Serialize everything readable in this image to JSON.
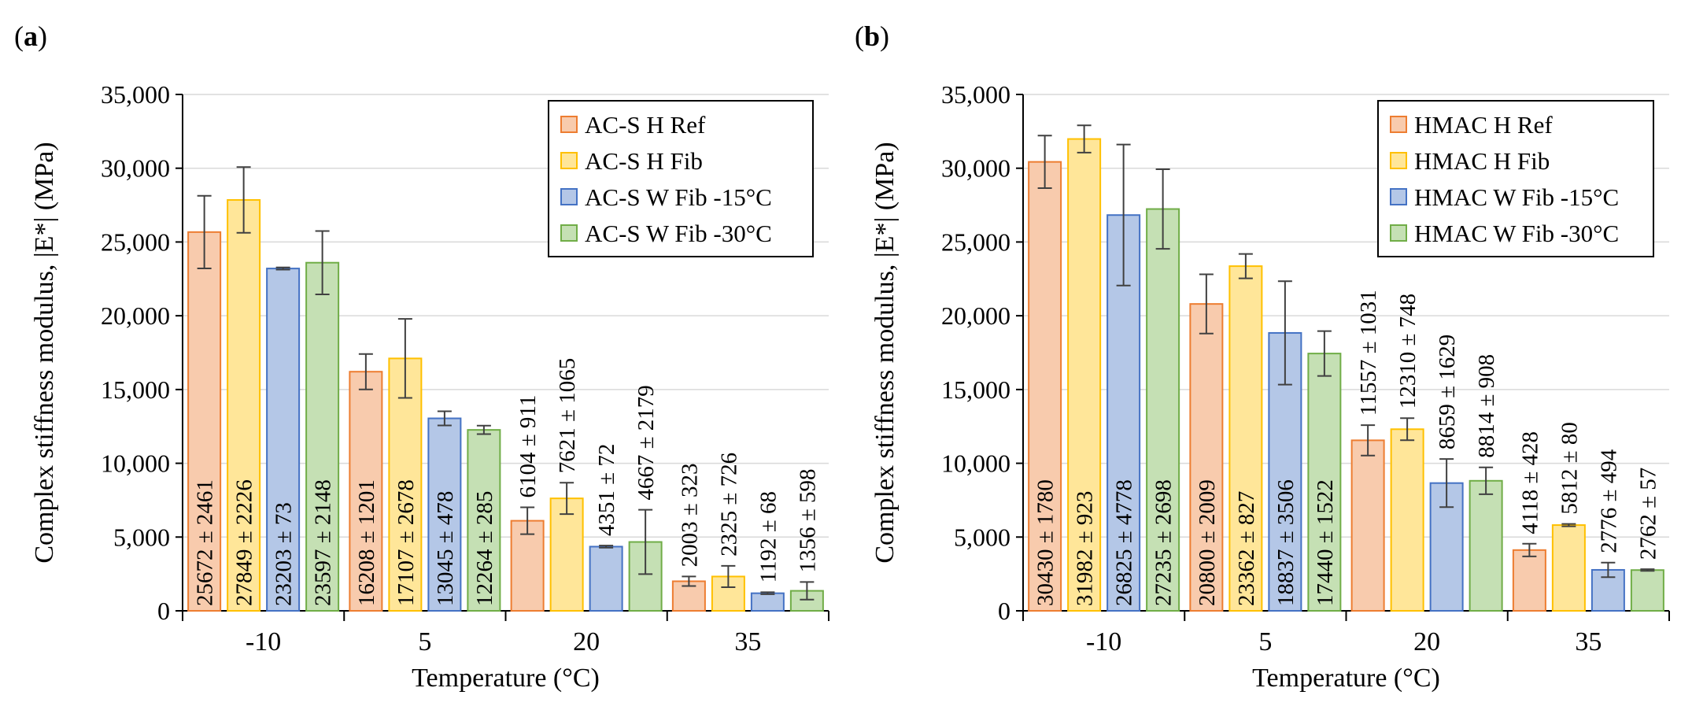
{
  "colors": {
    "h_ref_fill": "#F8CBAD",
    "h_ref_stroke": "#ED7D31",
    "h_fib_fill": "#FFE699",
    "h_fib_stroke": "#FFC000",
    "w15_fill": "#B4C7E7",
    "w15_stroke": "#4472C4",
    "w30_fill": "#C5E0B4",
    "w30_stroke": "#70AD47",
    "grid": "#D9D9D9",
    "error_bar": "#404040"
  },
  "chart_data": [
    {
      "type": "bar",
      "panel_label_open": "(",
      "panel_label_letter": "a",
      "panel_label_close": ")",
      "xlabel": "Temperature (°C)",
      "ylabel": "Complex stiffness modulus, |E*| (MPa)",
      "ylim": [
        0,
        35000
      ],
      "yticks": [
        0,
        5000,
        10000,
        15000,
        20000,
        25000,
        30000,
        35000
      ],
      "ytick_labels": [
        "0",
        "5,000",
        "10,000",
        "15,000",
        "20,000",
        "25,000",
        "30,000",
        "35,000"
      ],
      "grid": true,
      "legend_position": "top-right",
      "categories": [
        "-10",
        "5",
        "20",
        "35"
      ],
      "series": [
        {
          "name": "AC-S H Ref",
          "color_key": "h_ref",
          "values": [
            25672,
            16208,
            6104,
            2003
          ],
          "errors": [
            2461,
            1201,
            911,
            323
          ],
          "labels": [
            "25672 ± 2461",
            "16208 ± 1201",
            "6104 ± 911",
            "2003 ± 323"
          ]
        },
        {
          "name": "AC-S H Fib",
          "color_key": "h_fib",
          "values": [
            27849,
            17107,
            7621,
            2325
          ],
          "errors": [
            2226,
            2678,
            1065,
            726
          ],
          "labels": [
            "27849 ± 2226",
            "17107 ± 2678",
            "7621 ± 1065",
            "2325 ± 726"
          ]
        },
        {
          "name": "AC-S W Fib -15°C",
          "color_key": "w15",
          "values": [
            23203,
            13045,
            4351,
            1192
          ],
          "errors": [
            73,
            478,
            72,
            68
          ],
          "labels": [
            "23203 ± 73",
            "13045 ± 478",
            "4351 ± 72",
            "1192 ± 68"
          ]
        },
        {
          "name": "AC-S W Fib -30°C",
          "color_key": "w30",
          "values": [
            23597,
            12264,
            4667,
            1356
          ],
          "errors": [
            2148,
            285,
            2179,
            598
          ],
          "labels": [
            "23597 ± 2148",
            "12264 ± 285",
            "4667 ± 2179",
            "1356 ± 598"
          ]
        }
      ],
      "label_inside_categories": [
        0,
        1
      ]
    },
    {
      "type": "bar",
      "panel_label_open": "(",
      "panel_label_letter": "b",
      "panel_label_close": ")",
      "xlabel": "Temperature (°C)",
      "ylabel": "Complex stiffness modulus, |E*| (MPa)",
      "ylim": [
        0,
        35000
      ],
      "yticks": [
        0,
        5000,
        10000,
        15000,
        20000,
        25000,
        30000,
        35000
      ],
      "ytick_labels": [
        "0",
        "5,000",
        "10,000",
        "15,000",
        "20,000",
        "25,000",
        "30,000",
        "35,000"
      ],
      "grid": true,
      "legend_position": "top-right",
      "categories": [
        "-10",
        "5",
        "20",
        "35"
      ],
      "series": [
        {
          "name": "HMAC H Ref",
          "color_key": "h_ref",
          "values": [
            30430,
            20800,
            11557,
            4118
          ],
          "errors": [
            1780,
            2009,
            1031,
            428
          ],
          "labels": [
            "30430 ± 1780",
            "20800 ± 2009",
            "11557 ± 1031",
            "4118 ± 428"
          ]
        },
        {
          "name": "HMAC H Fib",
          "color_key": "h_fib",
          "values": [
            31982,
            23362,
            12310,
            5812
          ],
          "errors": [
            923,
            827,
            748,
            80
          ],
          "labels": [
            "31982 ± 923",
            "23362 ± 827",
            "12310 ± 748",
            "5812 ± 80"
          ]
        },
        {
          "name": "HMAC W Fib -15°C",
          "color_key": "w15",
          "values": [
            26825,
            18837,
            8659,
            2776
          ],
          "errors": [
            4778,
            3506,
            1629,
            494
          ],
          "labels": [
            "26825 ± 4778",
            "18837 ± 3506",
            "8659 ± 1629",
            "2776 ± 494"
          ]
        },
        {
          "name": "HMAC W Fib -30°C",
          "color_key": "w30",
          "values": [
            27235,
            17440,
            8814,
            2762
          ],
          "errors": [
            2698,
            1522,
            908,
            57
          ],
          "labels": [
            "27235 ± 2698",
            "17440 ± 1522",
            "8814 ± 908",
            "2762 ± 57"
          ]
        }
      ],
      "label_inside_categories": [
        0,
        1
      ]
    }
  ]
}
